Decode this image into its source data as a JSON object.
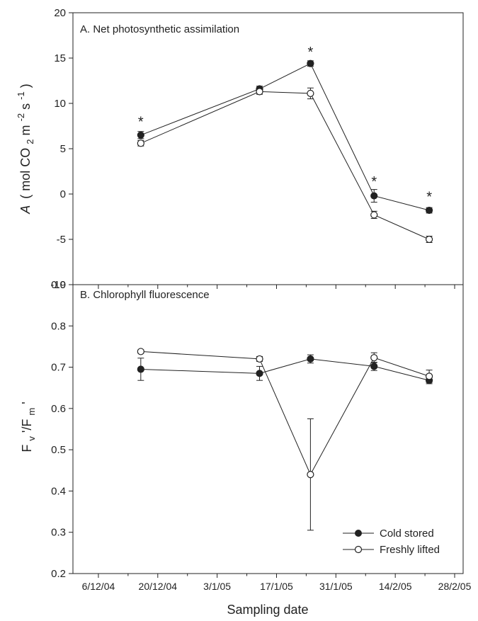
{
  "chart_data": [
    {
      "type": "line",
      "title": "A. Net photosynthetic assimilation",
      "ylabel_parts": {
        "italic": "A",
        "open": "(",
        "unit": " mol CO",
        "sub": "2",
        "m": " m",
        "sup1": "-2",
        "s": " s",
        "sup2": "-1",
        "close": ")"
      },
      "ylim": [
        -10,
        20
      ],
      "yticks": [
        -10,
        -5,
        0,
        5,
        10,
        15,
        20
      ],
      "ytick_labels": [
        "-10",
        "-5",
        "0",
        "5",
        "10",
        "15",
        "20"
      ],
      "x": [
        "2004-12-16",
        "2005-01-13",
        "2005-01-25",
        "2005-02-09",
        "2005-02-22"
      ],
      "series": [
        {
          "name": "Cold stored",
          "marker": "filled",
          "values": [
            6.5,
            11.6,
            14.4,
            -0.2,
            -1.8
          ],
          "errors": [
            0.4,
            0.3,
            0.3,
            0.7,
            0.3
          ]
        },
        {
          "name": "Freshly lifted",
          "marker": "open",
          "values": [
            5.6,
            11.3,
            11.1,
            -2.3,
            -5.0
          ],
          "errors": [
            0.3,
            0.3,
            0.6,
            0.4,
            0.35
          ]
        }
      ],
      "annotations": [
        {
          "text": "*",
          "x": "2004-12-16",
          "y": 8.1
        },
        {
          "text": "*",
          "x": "2005-01-25",
          "y": 15.8
        },
        {
          "text": "*",
          "x": "2005-02-09",
          "y": 1.5
        },
        {
          "text": "*",
          "x": "2005-02-22",
          "y": -0.2
        }
      ]
    },
    {
      "type": "line",
      "title": "B. Chlorophyll fluorescence",
      "ylabel_parts": {
        "f1": "F",
        "sub1": "v",
        "mid": "'/F",
        "sub2": "m",
        "end": "'"
      },
      "ylim": [
        0.2,
        0.9
      ],
      "yticks": [
        0.2,
        0.3,
        0.4,
        0.5,
        0.6,
        0.7,
        0.8,
        0.9
      ],
      "ytick_labels": [
        "0.2",
        "0.3",
        "0.4",
        "0.5",
        "0.6",
        "0.7",
        "0.8",
        "0.9"
      ],
      "x": [
        "2004-12-16",
        "2005-01-13",
        "2005-01-25",
        "2005-02-09",
        "2005-02-22"
      ],
      "series": [
        {
          "name": "Cold stored",
          "marker": "filled",
          "values": [
            0.695,
            0.685,
            0.72,
            0.702,
            0.668
          ],
          "errors": [
            0.027,
            0.017,
            0.01,
            0.01,
            0.008
          ]
        },
        {
          "name": "Freshly lifted",
          "marker": "open",
          "values": [
            0.738,
            0.72,
            0.44,
            0.723,
            0.678
          ],
          "errors": [
            0.004,
            0.006,
            0.135,
            0.012,
            0.015
          ]
        }
      ],
      "legend": {
        "placement": "bottom-right"
      }
    }
  ],
  "shared_x_axis": {
    "xlabel": "Sampling date",
    "xlim": [
      "2004-11-30",
      "2005-03-02"
    ],
    "ticks": [
      "2004-12-06",
      "2004-12-20",
      "2005-01-03",
      "2005-01-17",
      "2005-01-31",
      "2005-02-14",
      "2005-02-28"
    ],
    "tick_labels": [
      "6/12/04",
      "20/12/04",
      "3/1/05",
      "17/1/05",
      "31/1/05",
      "14/2/05",
      "28/2/05"
    ],
    "minor_ticks": [
      "2004-12-13",
      "2004-12-27",
      "2005-01-10",
      "2005-01-24",
      "2005-02-07",
      "2005-02-21"
    ]
  },
  "legend_entries": [
    "Cold stored",
    "Freshly lifted"
  ]
}
